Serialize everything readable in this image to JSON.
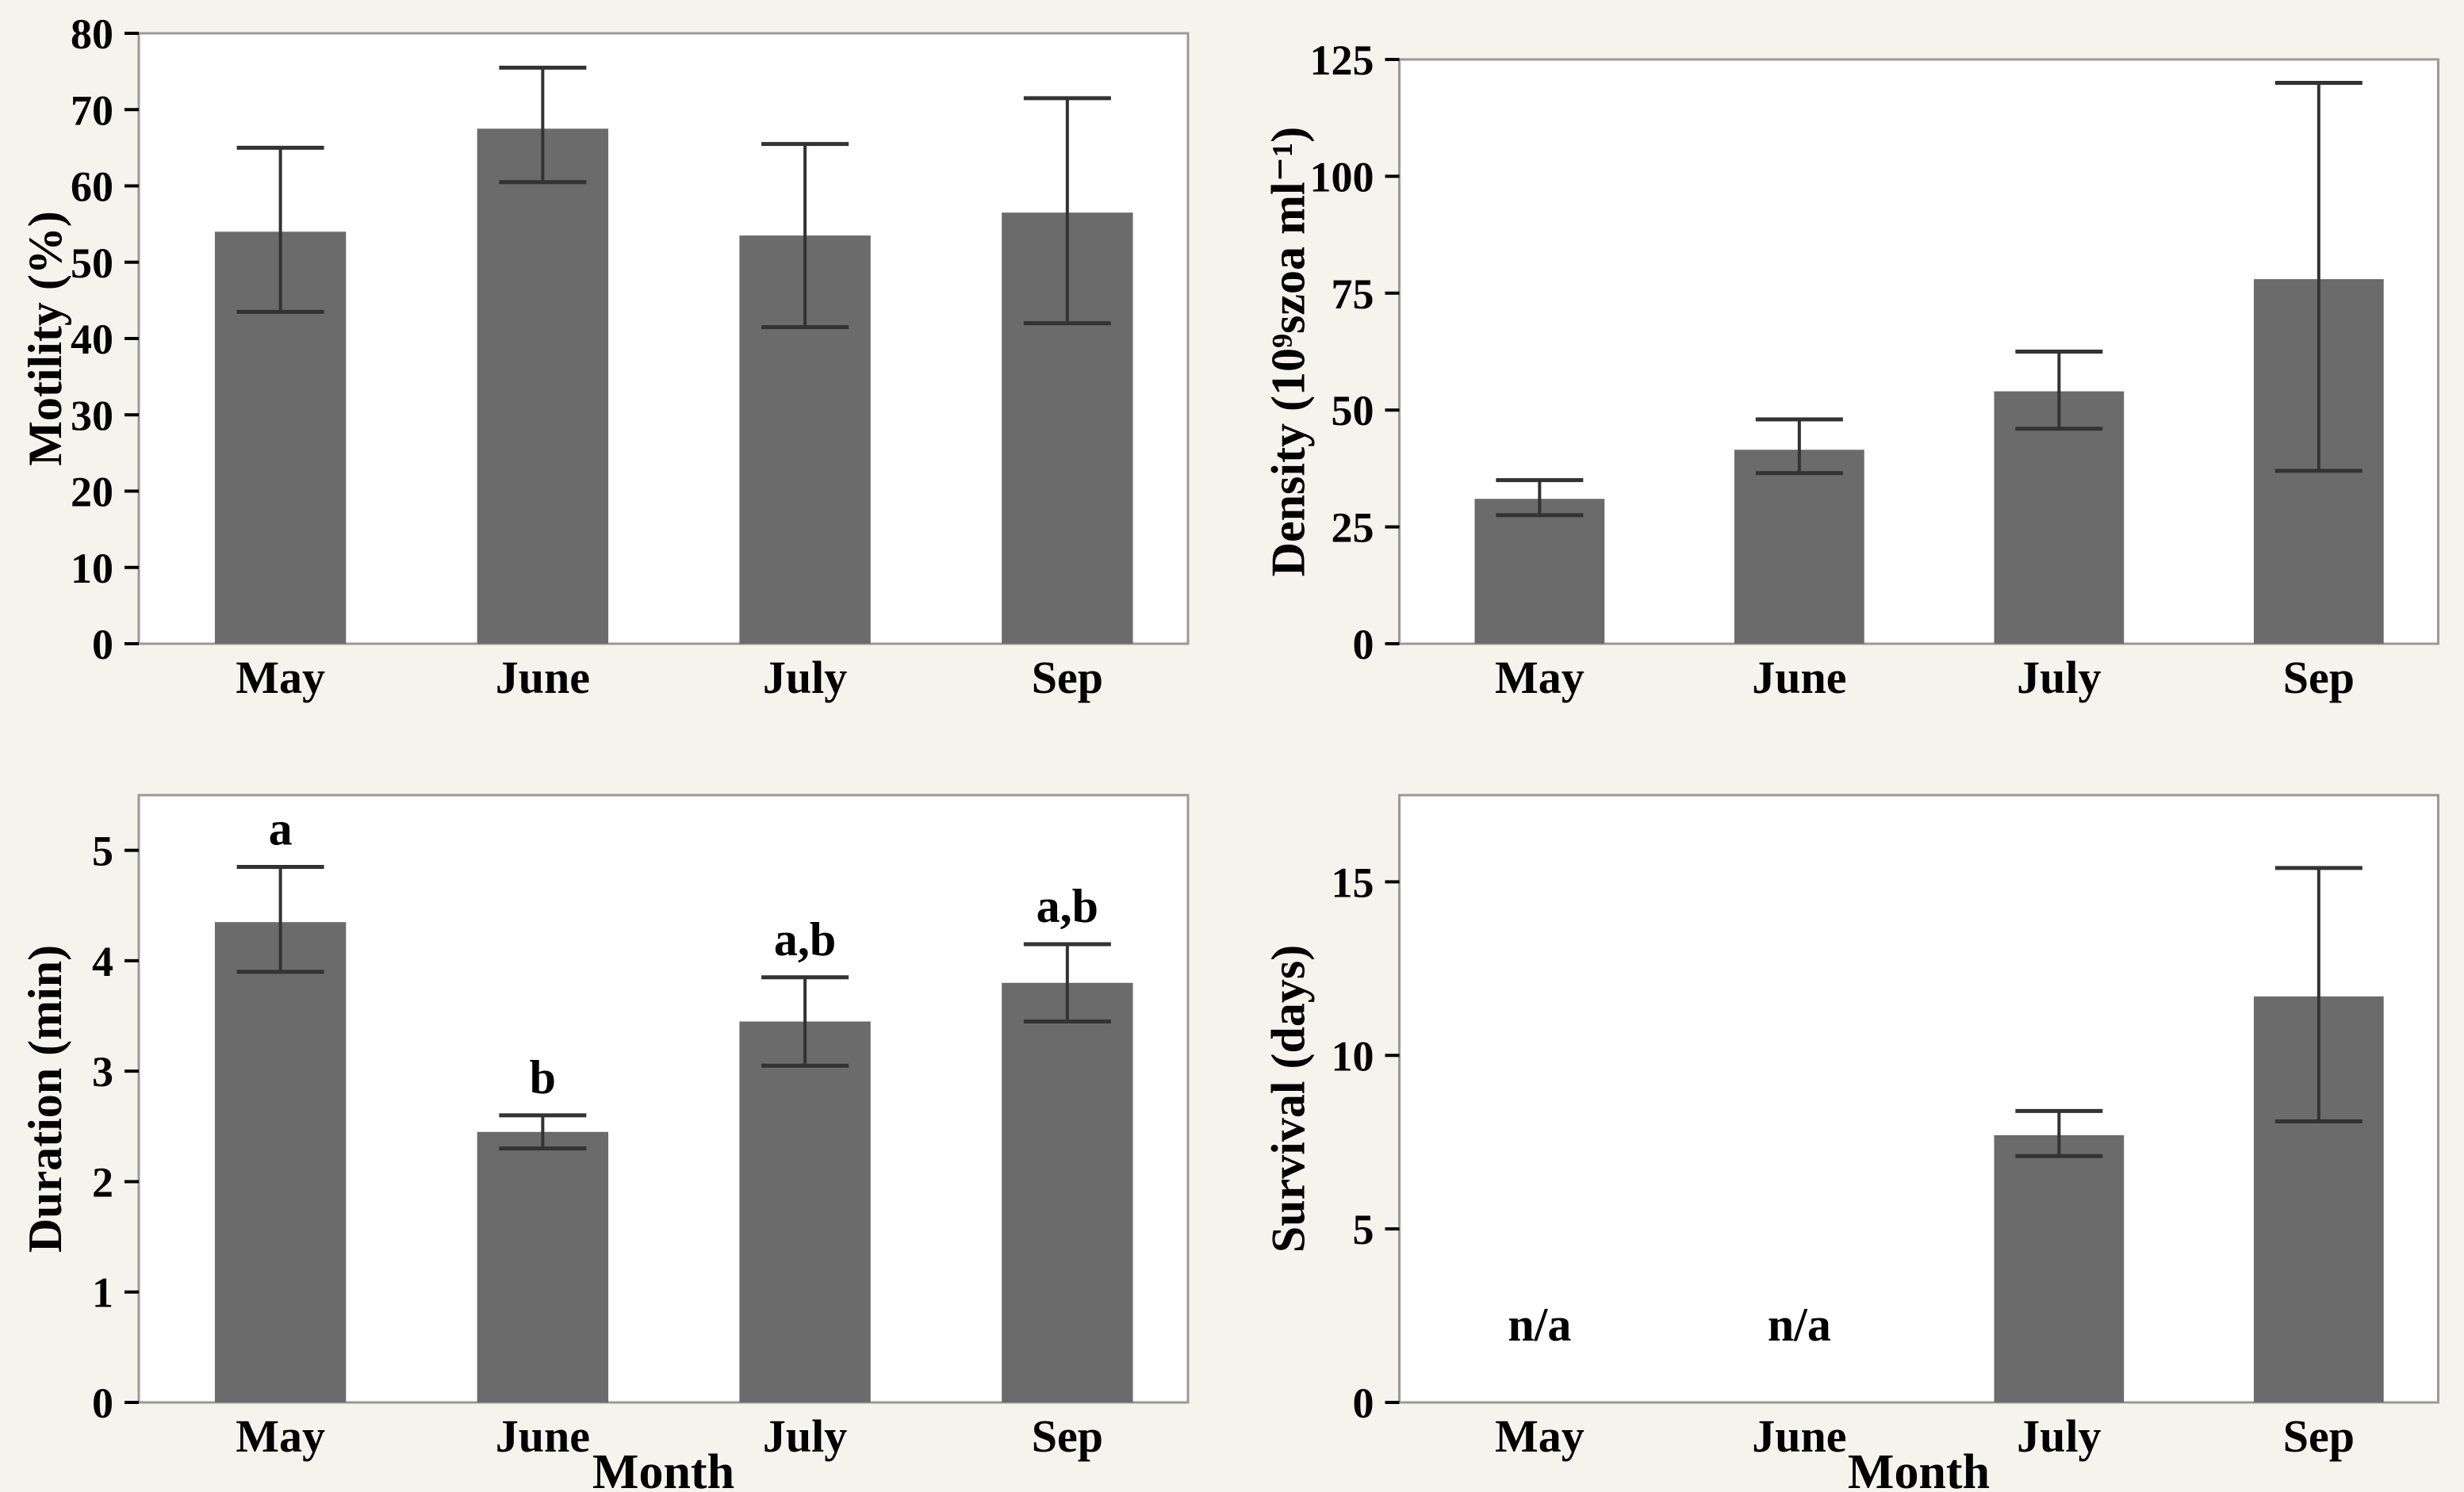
{
  "figure": {
    "description": "Four-panel bar chart of sperm traits by month",
    "x_axis_title": "Month",
    "categories": [
      "May",
      "June",
      "July",
      "Sep"
    ]
  },
  "colors": {
    "bar": "#6b6b6b",
    "error": "#333333",
    "box_border": "#999999",
    "plot_background": "#ffffff",
    "page_background": "#f4f4ed",
    "text": "#000000"
  },
  "chart_data": [
    {
      "type": "bar",
      "position": "top-left",
      "title": "",
      "ylabel": "Motility (%)",
      "xlabel": "",
      "categories": [
        "May",
        "June",
        "July",
        "Sep"
      ],
      "values": [
        54,
        67.5,
        53.5,
        56.5
      ],
      "error_low": [
        43.5,
        60.5,
        41.5,
        42
      ],
      "error_high": [
        65,
        75.5,
        65.5,
        71.5
      ],
      "yticks": [
        0,
        10,
        20,
        30,
        40,
        50,
        60,
        70,
        80
      ],
      "ylim": [
        0,
        80
      ],
      "annotations": [
        "",
        "",
        "",
        ""
      ],
      "grid": false,
      "legend": null
    },
    {
      "type": "bar",
      "position": "top-right",
      "title": "",
      "ylabel": "Density (10⁹szoa ml⁻¹)",
      "xlabel": "",
      "categories": [
        "May",
        "June",
        "July",
        "Sep"
      ],
      "values": [
        31,
        41.5,
        54,
        78
      ],
      "error_low": [
        27.5,
        36.5,
        46,
        37
      ],
      "error_high": [
        35,
        48,
        62.5,
        120
      ],
      "yticks": [
        0,
        25,
        50,
        75,
        100,
        125
      ],
      "ylim": [
        0,
        125
      ],
      "annotations": [
        "",
        "",
        "",
        ""
      ],
      "grid": false,
      "legend": null
    },
    {
      "type": "bar",
      "position": "bottom-left",
      "title": "",
      "ylabel": "Duration (min)",
      "xlabel": "Month",
      "categories": [
        "May",
        "June",
        "July",
        "Sep"
      ],
      "values": [
        4.35,
        2.45,
        3.45,
        3.8
      ],
      "error_low": [
        3.9,
        2.3,
        3.05,
        3.45
      ],
      "error_high": [
        4.85,
        2.6,
        3.85,
        4.15
      ],
      "yticks": [
        0,
        1,
        2,
        3,
        4,
        5
      ],
      "ylim": [
        0,
        5.5
      ],
      "annotations": [
        "a",
        "b",
        "a,b",
        "a,b"
      ],
      "grid": false,
      "legend": null
    },
    {
      "type": "bar",
      "position": "bottom-right",
      "title": "",
      "ylabel": "Survival (days)",
      "xlabel": "Month",
      "categories": [
        "May",
        "June",
        "July",
        "Sep"
      ],
      "values": [
        null,
        null,
        7.7,
        11.7
      ],
      "error_low": [
        null,
        null,
        7.1,
        8.1
      ],
      "error_high": [
        null,
        null,
        8.4,
        15.4
      ],
      "yticks": [
        0,
        5,
        10,
        15
      ],
      "ylim": [
        0,
        17.5
      ],
      "annotations": [
        "n/a",
        "n/a",
        "",
        ""
      ],
      "grid": false,
      "legend": null
    }
  ]
}
